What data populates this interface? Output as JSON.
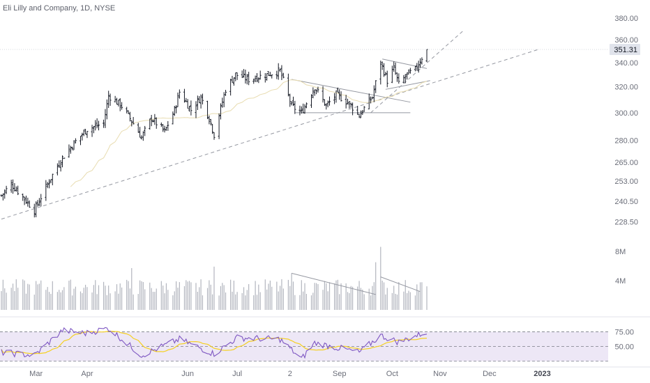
{
  "header": {
    "title": "Eli Lilly and Company, 1D, NYSE"
  },
  "price_axis": {
    "ticks": [
      "380.00",
      "360.00",
      "340.00",
      "320.00",
      "300.00",
      "280.00",
      "265.00",
      "253.00",
      "240.50",
      "228.50"
    ],
    "last_price": "351.31"
  },
  "volume_axis": {
    "ticks": [
      "8M",
      "4M"
    ]
  },
  "rsi_axis": {
    "ticks": [
      "75.00",
      "50.00"
    ]
  },
  "time_axis": {
    "ticks": [
      "Mar",
      "Apr",
      "Jun",
      "Jul",
      "2",
      "Sep",
      "Oct",
      "Nov",
      "Dec",
      "2023"
    ]
  },
  "colors": {
    "bar": "#131722",
    "volume": "#b2b5be",
    "rsi_line": "#7e57c2",
    "rsi_ma": "#f5d020",
    "rsi_band": "#ede7f6",
    "trend": "#9598a1",
    "last_price_bg": "#e0e3eb"
  },
  "chart_data": {
    "type": "ohlc",
    "title": "Eli Lilly and Company, 1D, NYSE",
    "y_scale": "log",
    "ylim": [
      222,
      392
    ],
    "last_price": 351.31,
    "date_range": [
      "2022-02-08",
      "2022-10-24"
    ],
    "anchors": [
      {
        "date": "2022-02-08",
        "close": 244
      },
      {
        "date": "2022-02-14",
        "close": 251
      },
      {
        "date": "2022-02-22",
        "close": 242
      },
      {
        "date": "2022-02-28",
        "close": 235
      },
      {
        "date": "2022-03-10",
        "close": 255
      },
      {
        "date": "2022-03-17",
        "close": 268
      },
      {
        "date": "2022-03-24",
        "close": 278
      },
      {
        "date": "2022-04-01",
        "close": 288
      },
      {
        "date": "2022-04-11",
        "close": 292
      },
      {
        "date": "2022-04-14",
        "close": 313
      },
      {
        "date": "2022-04-22",
        "close": 305
      },
      {
        "date": "2022-04-29",
        "close": 292
      },
      {
        "date": "2022-05-04",
        "close": 282
      },
      {
        "date": "2022-05-10",
        "close": 296
      },
      {
        "date": "2022-05-18",
        "close": 286
      },
      {
        "date": "2022-05-24",
        "close": 302
      },
      {
        "date": "2022-05-27",
        "close": 316
      },
      {
        "date": "2022-06-03",
        "close": 302
      },
      {
        "date": "2022-06-09",
        "close": 312
      },
      {
        "date": "2022-06-14",
        "close": 296
      },
      {
        "date": "2022-06-17",
        "close": 284
      },
      {
        "date": "2022-06-24",
        "close": 318
      },
      {
        "date": "2022-06-30",
        "close": 330
      },
      {
        "date": "2022-07-08",
        "close": 326
      },
      {
        "date": "2022-07-19",
        "close": 330
      },
      {
        "date": "2022-07-27",
        "close": 333
      },
      {
        "date": "2022-08-03",
        "close": 305
      },
      {
        "date": "2022-08-09",
        "close": 300
      },
      {
        "date": "2022-08-17",
        "close": 320
      },
      {
        "date": "2022-08-24",
        "close": 305
      },
      {
        "date": "2022-08-30",
        "close": 314
      },
      {
        "date": "2022-09-07",
        "close": 307
      },
      {
        "date": "2022-09-13",
        "close": 298
      },
      {
        "date": "2022-09-21",
        "close": 312
      },
      {
        "date": "2022-09-26",
        "close": 340
      },
      {
        "date": "2022-09-30",
        "close": 325
      },
      {
        "date": "2022-10-04",
        "close": 335
      },
      {
        "date": "2022-10-07",
        "close": 322
      },
      {
        "date": "2022-10-12",
        "close": 330
      },
      {
        "date": "2022-10-17",
        "close": 334
      },
      {
        "date": "2022-10-20",
        "close": 342
      },
      {
        "date": "2022-10-24",
        "close": 351.31
      }
    ],
    "trendlines": [
      {
        "style": "dashed",
        "from": {
          "date": "2022-02-08",
          "price": 230
        },
        "to": {
          "date": "2022-12-30",
          "price": 351
        }
      },
      {
        "style": "dashed",
        "from": {
          "date": "2022-09-20",
          "price": 300
        },
        "to": {
          "date": "2022-11-15",
          "price": 368
        }
      },
      {
        "style": "solid",
        "from": {
          "date": "2022-08-03",
          "price": 326
        },
        "to": {
          "date": "2022-10-14",
          "price": 308
        }
      },
      {
        "style": "solid",
        "from": {
          "date": "2022-08-05",
          "price": 300
        },
        "to": {
          "date": "2022-10-14",
          "price": 300
        }
      },
      {
        "style": "solid",
        "from": {
          "date": "2022-09-27",
          "price": 343
        },
        "to": {
          "date": "2022-10-24",
          "price": 335
        }
      },
      {
        "style": "solid",
        "from": {
          "date": "2022-09-29",
          "price": 318
        },
        "to": {
          "date": "2022-10-26",
          "price": 325
        }
      }
    ],
    "volume": {
      "type": "bar",
      "unit": "shares",
      "typical": 3000000,
      "spikes": [
        {
          "date": "2022-06-17",
          "value": 5900000
        },
        {
          "date": "2022-04-28",
          "value": 5700000
        },
        {
          "date": "2022-08-03",
          "value": 5000000
        },
        {
          "date": "2022-09-26",
          "value": 8600000
        },
        {
          "date": "2022-09-23",
          "value": 6500000
        }
      ],
      "trendlines": [
        {
          "from": {
            "date": "2022-08-03",
            "value": 5000000
          },
          "to": {
            "date": "2022-09-23",
            "value": 2100000
          }
        },
        {
          "from": {
            "date": "2022-09-26",
            "value": 4500000
          },
          "to": {
            "date": "2022-10-20",
            "value": 2500000
          }
        }
      ]
    },
    "rsi": {
      "type": "line",
      "bands": [
        30,
        50,
        70
      ],
      "anchors": [
        {
          "date": "2022-02-08",
          "value": 42
        },
        {
          "date": "2022-02-28",
          "value": 38
        },
        {
          "date": "2022-03-17",
          "value": 72
        },
        {
          "date": "2022-03-31",
          "value": 68
        },
        {
          "date": "2022-04-14",
          "value": 75
        },
        {
          "date": "2022-05-04",
          "value": 38
        },
        {
          "date": "2022-05-27",
          "value": 60
        },
        {
          "date": "2022-06-17",
          "value": 40
        },
        {
          "date": "2022-07-01",
          "value": 62
        },
        {
          "date": "2022-07-27",
          "value": 60
        },
        {
          "date": "2022-08-09",
          "value": 33
        },
        {
          "date": "2022-08-17",
          "value": 55
        },
        {
          "date": "2022-09-13",
          "value": 42
        },
        {
          "date": "2022-09-26",
          "value": 65
        },
        {
          "date": "2022-10-07",
          "value": 56
        },
        {
          "date": "2022-10-24",
          "value": 70
        }
      ]
    }
  }
}
